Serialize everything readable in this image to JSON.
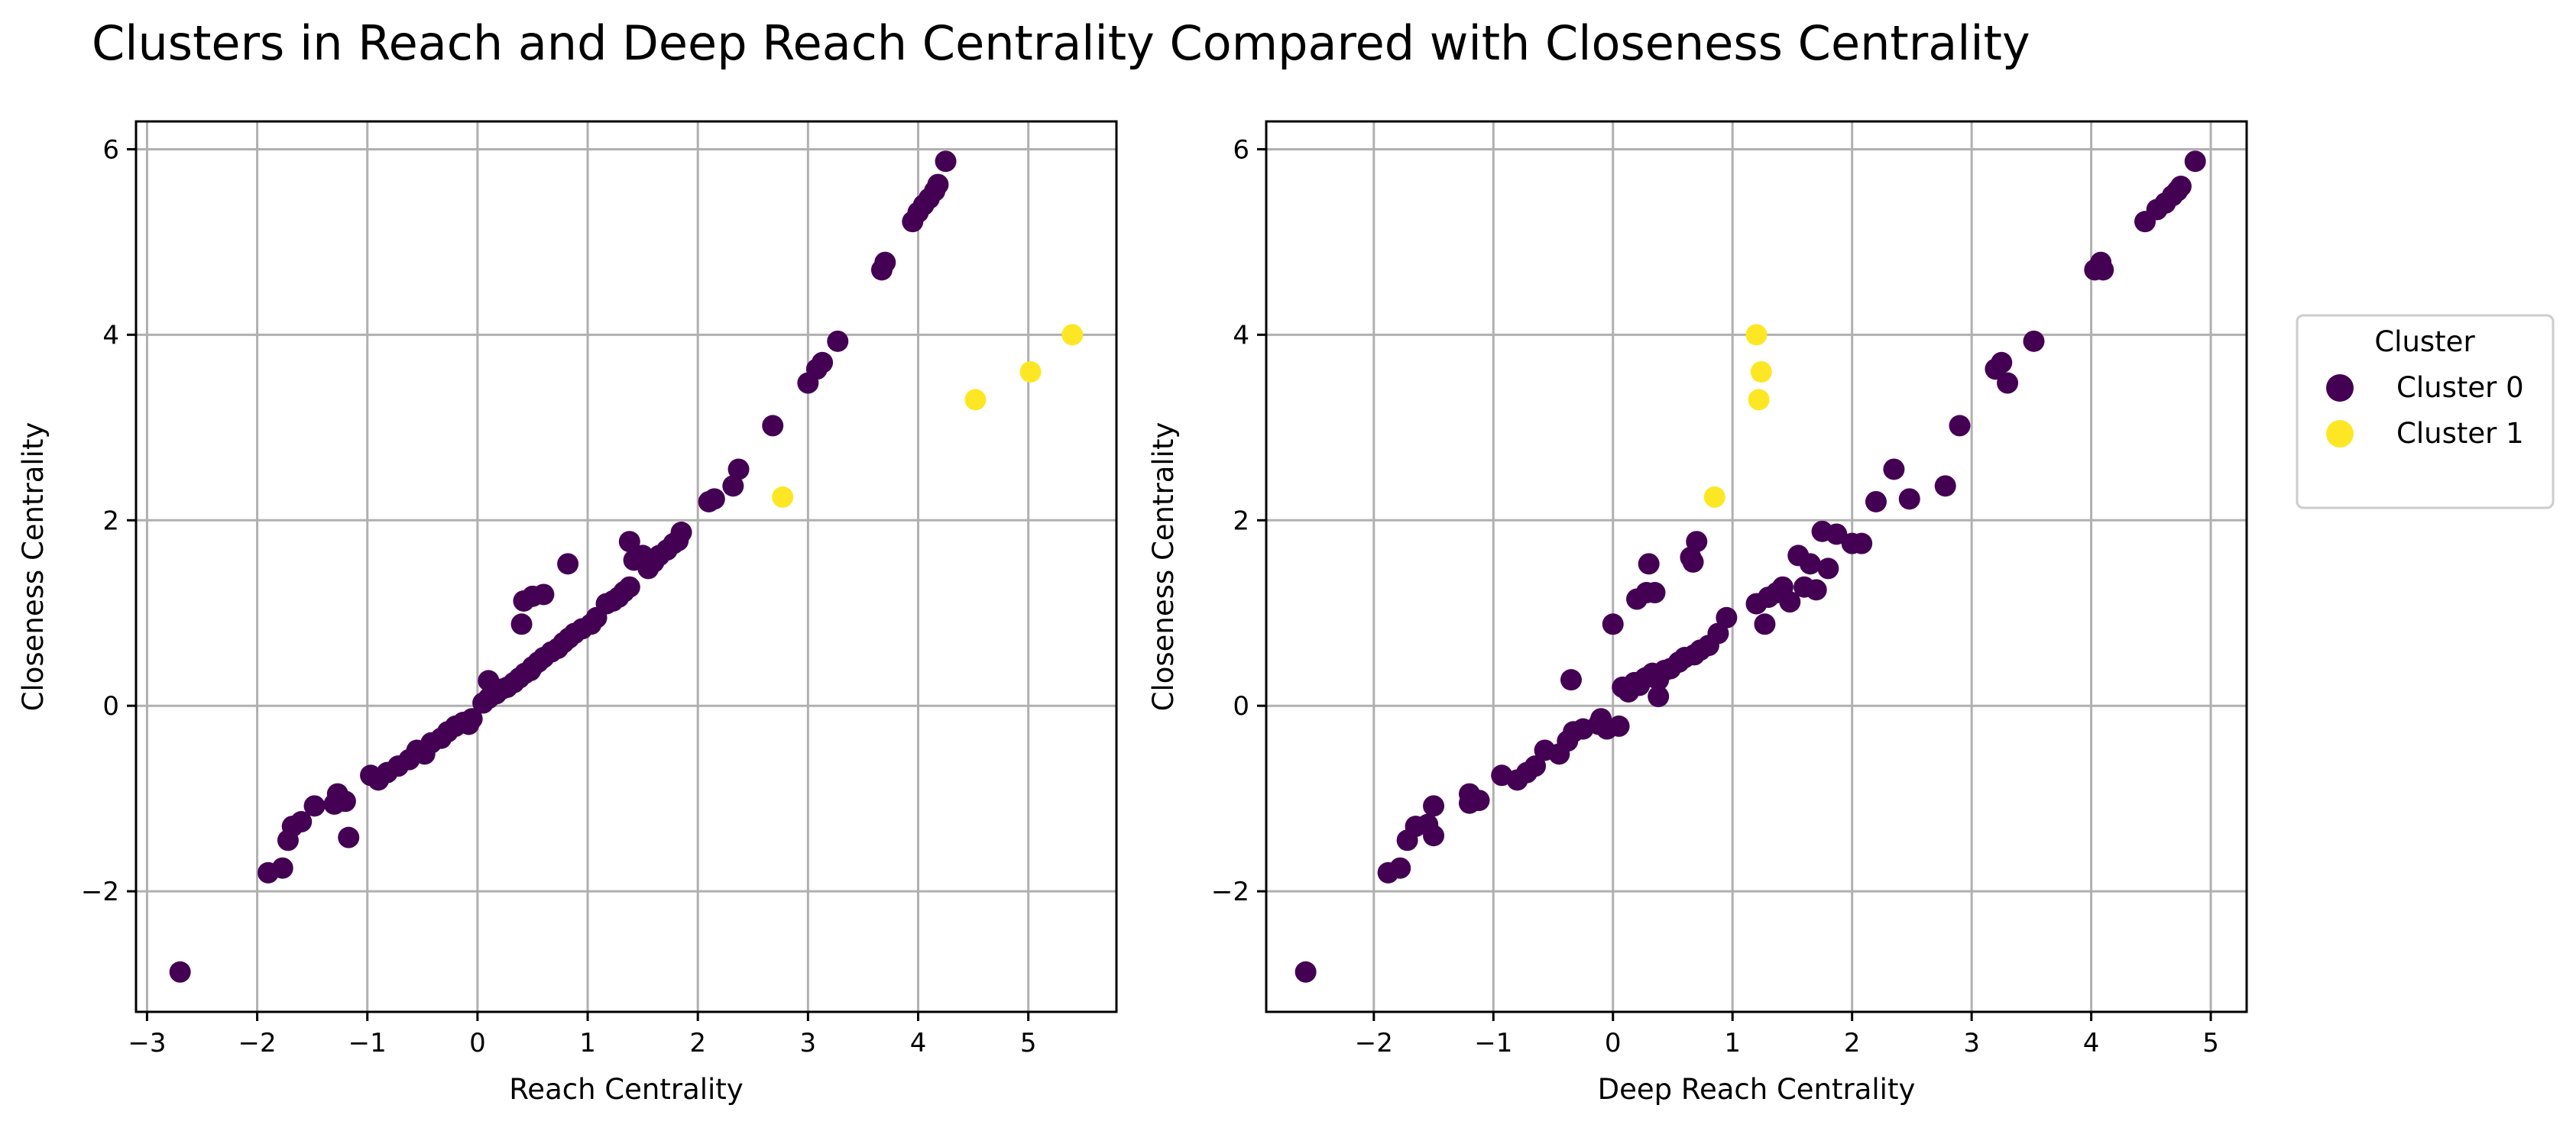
{
  "title": "Clusters in Reach and Deep Reach Centrality Compared with Closeness Centrality",
  "colors": {
    "cluster_0": "#440154",
    "cluster_1": "#fde725",
    "grid": "#b0b0b0"
  },
  "legend": {
    "title": "Cluster",
    "placement": "right, outside plots",
    "items": [
      {
        "label": "Cluster 0",
        "color": "#440154"
      },
      {
        "label": "Cluster 1",
        "color": "#fde725"
      }
    ]
  },
  "chart_data": [
    {
      "type": "scatter",
      "xlabel": "Reach Centrality",
      "ylabel": "Closeness Centrality",
      "xlim": [
        -3.1,
        5.8
      ],
      "ylim": [
        -3.3,
        6.3
      ],
      "xticks": [
        -3,
        -2,
        -1,
        0,
        1,
        2,
        3,
        4,
        5
      ],
      "yticks": [
        -2,
        0,
        2,
        4,
        6
      ],
      "grid": true,
      "series": [
        {
          "name": "Cluster 0",
          "color": "#440154",
          "points": [
            [
              -2.7,
              -2.87
            ],
            [
              -1.9,
              -1.8
            ],
            [
              -1.77,
              -1.75
            ],
            [
              -1.72,
              -1.45
            ],
            [
              -1.68,
              -1.3
            ],
            [
              -1.6,
              -1.25
            ],
            [
              -1.48,
              -1.08
            ],
            [
              -1.3,
              -1.06
            ],
            [
              -1.27,
              -0.95
            ],
            [
              -1.2,
              -1.03
            ],
            [
              -1.17,
              -1.42
            ],
            [
              -0.97,
              -0.75
            ],
            [
              -0.9,
              -0.8
            ],
            [
              -0.82,
              -0.72
            ],
            [
              -0.72,
              -0.65
            ],
            [
              -0.62,
              -0.58
            ],
            [
              -0.55,
              -0.48
            ],
            [
              -0.48,
              -0.52
            ],
            [
              -0.42,
              -0.4
            ],
            [
              -0.33,
              -0.35
            ],
            [
              -0.27,
              -0.28
            ],
            [
              -0.2,
              -0.22
            ],
            [
              -0.13,
              -0.18
            ],
            [
              -0.08,
              -0.2
            ],
            [
              -0.05,
              -0.14
            ],
            [
              0.05,
              0.03
            ],
            [
              0.1,
              0.08
            ],
            [
              0.1,
              0.27
            ],
            [
              0.17,
              0.13
            ],
            [
              0.22,
              0.18
            ],
            [
              0.27,
              0.2
            ],
            [
              0.33,
              0.25
            ],
            [
              0.38,
              0.3
            ],
            [
              0.43,
              0.35
            ],
            [
              0.48,
              0.38
            ],
            [
              0.5,
              0.42
            ],
            [
              0.55,
              0.47
            ],
            [
              0.6,
              0.52
            ],
            [
              0.67,
              0.58
            ],
            [
              0.73,
              0.62
            ],
            [
              0.78,
              0.68
            ],
            [
              0.83,
              0.73
            ],
            [
              0.88,
              0.78
            ],
            [
              0.95,
              0.83
            ],
            [
              1.03,
              0.88
            ],
            [
              1.08,
              0.95
            ],
            [
              0.4,
              0.88
            ],
            [
              0.42,
              1.13
            ],
            [
              0.5,
              1.18
            ],
            [
              0.6,
              1.2
            ],
            [
              0.82,
              1.53
            ],
            [
              1.17,
              1.1
            ],
            [
              1.23,
              1.13
            ],
            [
              1.28,
              1.17
            ],
            [
              1.33,
              1.23
            ],
            [
              1.38,
              1.28
            ],
            [
              1.38,
              1.77
            ],
            [
              1.42,
              1.57
            ],
            [
              1.5,
              1.62
            ],
            [
              1.55,
              1.48
            ],
            [
              1.6,
              1.55
            ],
            [
              1.65,
              1.62
            ],
            [
              1.72,
              1.68
            ],
            [
              1.78,
              1.75
            ],
            [
              1.82,
              1.78
            ],
            [
              1.85,
              1.87
            ],
            [
              2.1,
              2.2
            ],
            [
              2.15,
              2.23
            ],
            [
              2.32,
              2.37
            ],
            [
              2.37,
              2.55
            ],
            [
              2.68,
              3.02
            ],
            [
              3.0,
              3.48
            ],
            [
              3.08,
              3.63
            ],
            [
              3.13,
              3.7
            ],
            [
              3.27,
              3.93
            ],
            [
              3.67,
              4.7
            ],
            [
              3.7,
              4.78
            ],
            [
              3.95,
              5.22
            ],
            [
              4.0,
              5.32
            ],
            [
              4.05,
              5.4
            ],
            [
              4.1,
              5.47
            ],
            [
              4.15,
              5.55
            ],
            [
              4.18,
              5.62
            ],
            [
              4.25,
              5.87
            ]
          ]
        },
        {
          "name": "Cluster 1",
          "color": "#fde725",
          "points": [
            [
              2.77,
              2.25
            ],
            [
              4.52,
              3.3
            ],
            [
              5.02,
              3.6
            ],
            [
              5.4,
              4.0
            ]
          ]
        }
      ]
    },
    {
      "type": "scatter",
      "xlabel": "Deep Reach Centrality",
      "ylabel": "Closeness Centrality",
      "xlim": [
        -2.9,
        5.3
      ],
      "ylim": [
        -3.3,
        6.3
      ],
      "xticks": [
        -2,
        -1,
        0,
        1,
        2,
        3,
        4,
        5
      ],
      "yticks": [
        -2,
        0,
        2,
        4,
        6
      ],
      "grid": true,
      "series": [
        {
          "name": "Cluster 0",
          "color": "#440154",
          "points": [
            [
              -2.57,
              -2.87
            ],
            [
              -1.88,
              -1.8
            ],
            [
              -1.78,
              -1.75
            ],
            [
              -1.72,
              -1.45
            ],
            [
              -1.65,
              -1.3
            ],
            [
              -1.55,
              -1.28
            ],
            [
              -1.5,
              -1.08
            ],
            [
              -1.5,
              -1.4
            ],
            [
              -1.2,
              -0.95
            ],
            [
              -1.2,
              -1.05
            ],
            [
              -1.12,
              -1.02
            ],
            [
              -0.93,
              -0.75
            ],
            [
              -0.8,
              -0.8
            ],
            [
              -0.72,
              -0.72
            ],
            [
              -0.65,
              -0.65
            ],
            [
              -0.57,
              -0.48
            ],
            [
              -0.45,
              -0.52
            ],
            [
              -0.38,
              -0.38
            ],
            [
              -0.33,
              -0.28
            ],
            [
              -0.35,
              0.28
            ],
            [
              -0.25,
              -0.25
            ],
            [
              -0.12,
              -0.2
            ],
            [
              -0.1,
              -0.14
            ],
            [
              -0.05,
              -0.25
            ],
            [
              0.05,
              -0.22
            ],
            [
              0.0,
              0.88
            ],
            [
              0.08,
              0.2
            ],
            [
              0.13,
              0.15
            ],
            [
              0.18,
              0.25
            ],
            [
              0.22,
              0.22
            ],
            [
              0.27,
              0.3
            ],
            [
              0.33,
              0.35
            ],
            [
              0.38,
              0.28
            ],
            [
              0.38,
              0.1
            ],
            [
              0.43,
              0.38
            ],
            [
              0.48,
              0.4
            ],
            [
              0.55,
              0.47
            ],
            [
              0.6,
              0.52
            ],
            [
              0.68,
              0.55
            ],
            [
              0.73,
              0.6
            ],
            [
              0.8,
              0.65
            ],
            [
              0.88,
              0.78
            ],
            [
              0.95,
              0.95
            ],
            [
              0.2,
              1.15
            ],
            [
              0.28,
              1.22
            ],
            [
              0.3,
              1.53
            ],
            [
              0.35,
              1.22
            ],
            [
              0.65,
              1.6
            ],
            [
              0.67,
              1.55
            ],
            [
              0.7,
              1.77
            ],
            [
              1.2,
              1.1
            ],
            [
              1.27,
              0.88
            ],
            [
              1.3,
              1.17
            ],
            [
              1.37,
              1.22
            ],
            [
              1.42,
              1.28
            ],
            [
              1.48,
              1.12
            ],
            [
              1.55,
              1.62
            ],
            [
              1.6,
              1.28
            ],
            [
              1.65,
              1.53
            ],
            [
              1.7,
              1.25
            ],
            [
              1.75,
              1.88
            ],
            [
              1.8,
              1.48
            ],
            [
              1.87,
              1.85
            ],
            [
              2.0,
              1.75
            ],
            [
              2.08,
              1.75
            ],
            [
              2.2,
              2.2
            ],
            [
              2.35,
              2.55
            ],
            [
              2.48,
              2.23
            ],
            [
              2.78,
              2.37
            ],
            [
              2.9,
              3.02
            ],
            [
              3.2,
              3.63
            ],
            [
              3.25,
              3.7
            ],
            [
              3.3,
              3.48
            ],
            [
              3.52,
              3.93
            ],
            [
              4.03,
              4.7
            ],
            [
              4.08,
              4.78
            ],
            [
              4.1,
              4.7
            ],
            [
              4.45,
              5.22
            ],
            [
              4.55,
              5.35
            ],
            [
              4.62,
              5.42
            ],
            [
              4.68,
              5.5
            ],
            [
              4.72,
              5.55
            ],
            [
              4.75,
              5.6
            ],
            [
              4.87,
              5.87
            ]
          ]
        },
        {
          "name": "Cluster 1",
          "color": "#fde725",
          "points": [
            [
              0.85,
              2.25
            ],
            [
              1.2,
              4.0
            ],
            [
              1.22,
              3.3
            ],
            [
              1.24,
              3.6
            ]
          ]
        }
      ]
    }
  ]
}
